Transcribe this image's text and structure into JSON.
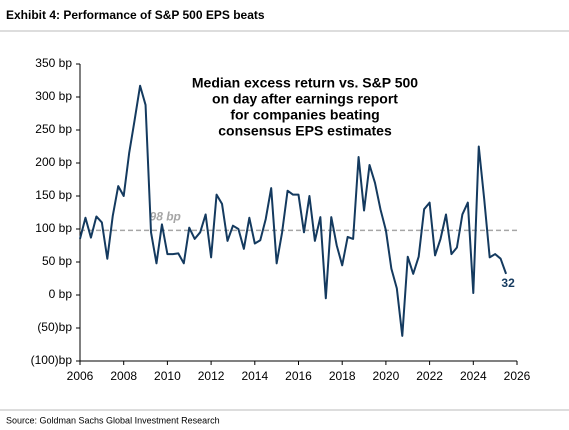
{
  "header": {
    "title": "Exhibit 4: Performance of S&P 500 EPS beats"
  },
  "chart_data": {
    "type": "line",
    "annotation": [
      "Median excess return vs. S&P 500",
      "on day after earnings report",
      "for companies beating",
      "consensus EPS estimates"
    ],
    "x": [
      2006.0,
      2006.25,
      2006.5,
      2006.75,
      2007.0,
      2007.25,
      2007.5,
      2007.75,
      2008.0,
      2008.25,
      2008.5,
      2008.75,
      2009.0,
      2009.25,
      2009.5,
      2009.75,
      2010.0,
      2010.25,
      2010.5,
      2010.75,
      2011.0,
      2011.25,
      2011.5,
      2011.75,
      2012.0,
      2012.25,
      2012.5,
      2012.75,
      2013.0,
      2013.25,
      2013.5,
      2013.75,
      2014.0,
      2014.25,
      2014.5,
      2014.75,
      2015.0,
      2015.25,
      2015.5,
      2015.75,
      2016.0,
      2016.25,
      2016.5,
      2016.75,
      2017.0,
      2017.25,
      2017.5,
      2017.75,
      2018.0,
      2018.25,
      2018.5,
      2018.75,
      2019.0,
      2019.25,
      2019.5,
      2019.75,
      2020.0,
      2020.25,
      2020.5,
      2020.75,
      2021.0,
      2021.25,
      2021.5,
      2021.75,
      2022.0,
      2022.25,
      2022.5,
      2022.75,
      2023.0,
      2023.25,
      2023.5,
      2023.75,
      2024.0,
      2024.25,
      2024.5,
      2024.75,
      2025.0,
      2025.25,
      2025.5
    ],
    "values": [
      85,
      117,
      87,
      119,
      110,
      55,
      120,
      165,
      150,
      215,
      265,
      317,
      288,
      95,
      48,
      107,
      62,
      62,
      63,
      48,
      102,
      85,
      95,
      122,
      57,
      152,
      138,
      82,
      105,
      100,
      70,
      117,
      78,
      83,
      115,
      162,
      48,
      95,
      158,
      152,
      152,
      95,
      150,
      82,
      118,
      -5,
      118,
      75,
      45,
      88,
      85,
      209,
      128,
      197,
      170,
      130,
      98,
      40,
      10,
      -62,
      58,
      32,
      58,
      130,
      140,
      60,
      85,
      122,
      62,
      72,
      122,
      140,
      3,
      225,
      145,
      57,
      62,
      55,
      32
    ],
    "color": "#143a5f",
    "reference_line": {
      "value": 98,
      "label": "98 bp",
      "color": "#a6a6a6"
    },
    "xlim": [
      2006,
      2026
    ],
    "xticks": [
      2006,
      2008,
      2010,
      2012,
      2014,
      2016,
      2018,
      2020,
      2022,
      2024,
      2026
    ],
    "ylim": [
      -100,
      350
    ],
    "yticks": [
      {
        "value": 350,
        "label": "350 bp"
      },
      {
        "value": 300,
        "label": "300 bp"
      },
      {
        "value": 250,
        "label": "250 bp"
      },
      {
        "value": 200,
        "label": "200 bp"
      },
      {
        "value": 150,
        "label": "150 bp"
      },
      {
        "value": 100,
        "label": "100 bp"
      },
      {
        "value": 50,
        "label": "50 bp"
      },
      {
        "value": 0,
        "label": "0 bp"
      },
      {
        "value": -50,
        "label": "(50)bp"
      },
      {
        "value": -100,
        "label": "(100)bp"
      }
    ]
  },
  "footer": {
    "source": "Source: Goldman Sachs Global Investment Research"
  }
}
